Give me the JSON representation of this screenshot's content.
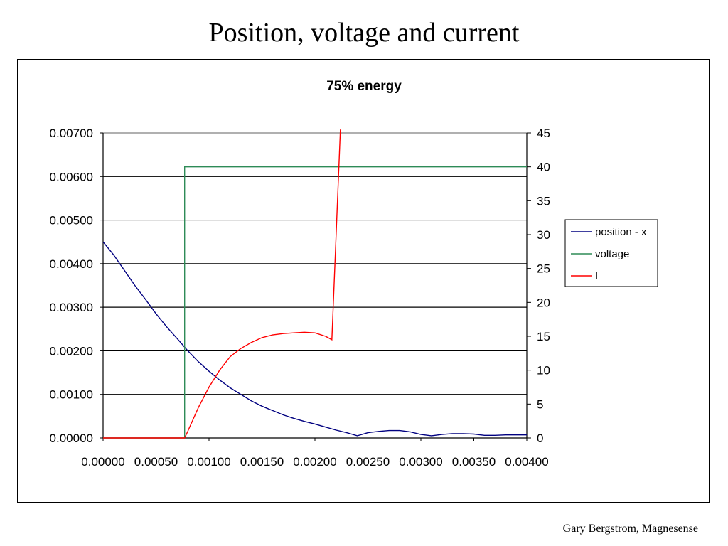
{
  "slide": {
    "title": "Position, voltage and current",
    "footer": "Gary Bergstrom, Magnesense"
  },
  "chart_data": {
    "type": "line",
    "title": "75% energy",
    "xlabel": "",
    "ylabel": "",
    "y2label": "",
    "xlim": [
      0,
      0.004
    ],
    "ylim": [
      0,
      0.007
    ],
    "y2lim": [
      0,
      45
    ],
    "x_ticks": [
      "0.00000",
      "0.00050",
      "0.00100",
      "0.00150",
      "0.00200",
      "0.00250",
      "0.00300",
      "0.00350",
      "0.00400"
    ],
    "y_ticks": [
      "0.00000",
      "0.00100",
      "0.00200",
      "0.00300",
      "0.00400",
      "0.00500",
      "0.00600",
      "0.00700"
    ],
    "y2_ticks": [
      "0",
      "5",
      "10",
      "15",
      "20",
      "25",
      "30",
      "35",
      "40",
      "45"
    ],
    "grid": "horizontal",
    "legend_position": "right",
    "series": [
      {
        "name": "position - x",
        "axis": "left",
        "color": "#000080",
        "x": [
          0,
          0.0001,
          0.0002,
          0.0003,
          0.0004,
          0.0005,
          0.0006,
          0.0007,
          0.0008,
          0.0009,
          0.001,
          0.0011,
          0.0012,
          0.0013,
          0.0014,
          0.0015,
          0.0016,
          0.0017,
          0.0018,
          0.0019,
          0.002,
          0.0021,
          0.0022,
          0.0023,
          0.0024,
          0.0025,
          0.0026,
          0.0027,
          0.0028,
          0.0029,
          0.003,
          0.0031,
          0.0032,
          0.0033,
          0.0034,
          0.0035,
          0.0036,
          0.0037,
          0.0038,
          0.0039,
          0.004
        ],
        "values": [
          0.0045,
          0.0042,
          0.00385,
          0.0035,
          0.00318,
          0.00285,
          0.00255,
          0.00228,
          0.002,
          0.00175,
          0.00153,
          0.00133,
          0.00115,
          0.001,
          0.00085,
          0.00073,
          0.00063,
          0.00053,
          0.00045,
          0.00038,
          0.00032,
          0.00025,
          0.00018,
          0.00012,
          5e-05,
          0.00012,
          0.00015,
          0.00017,
          0.00017,
          0.00014,
          8e-05,
          5e-05,
          8e-05,
          0.0001,
          0.0001,
          9e-05,
          6e-05,
          6e-05,
          7e-05,
          7e-05,
          7e-05
        ]
      },
      {
        "name": "voltage",
        "axis": "right",
        "color": "#2e8b57",
        "x": [
          0,
          0.00077,
          0.00077,
          0.004
        ],
        "values": [
          0,
          0,
          40,
          40
        ]
      },
      {
        "name": "I",
        "axis": "right",
        "color": "#ff0000",
        "x": [
          0,
          0.00077,
          0.0008,
          0.0009,
          0.001,
          0.0011,
          0.0012,
          0.0013,
          0.0014,
          0.0015,
          0.0016,
          0.0017,
          0.0018,
          0.0019,
          0.002,
          0.0021,
          0.00216,
          0.00224
        ],
        "values": [
          0,
          0,
          1,
          4.5,
          7.5,
          10,
          12,
          13.2,
          14.1,
          14.8,
          15.2,
          15.4,
          15.5,
          15.6,
          15.5,
          15,
          14.5,
          45.5
        ]
      }
    ]
  }
}
